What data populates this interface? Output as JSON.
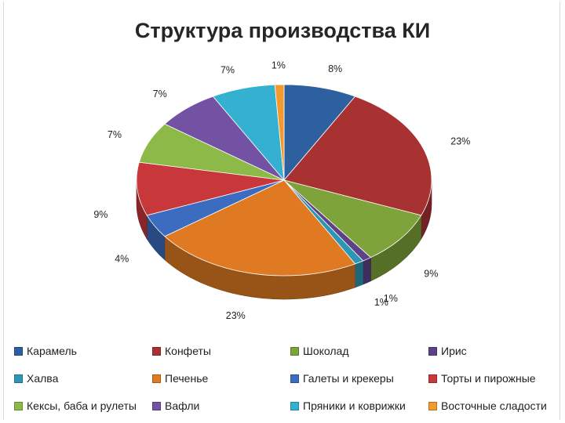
{
  "chart_data": {
    "type": "pie",
    "style": "3d-pie",
    "title": "Структура производства КИ",
    "legend_position": "bottom",
    "slices": [
      {
        "name": "Карамель",
        "value": 8,
        "label": "8%",
        "color": "#2e5f9e"
      },
      {
        "name": "Конфеты",
        "value": 23,
        "label": "23%",
        "color": "#a83232"
      },
      {
        "name": "Шоколад",
        "value": 9,
        "label": "9%",
        "color": "#7ea33a"
      },
      {
        "name": "Ирис",
        "value": 1,
        "label": "1%",
        "color": "#5d4287"
      },
      {
        "name": "Халва",
        "value": 1,
        "label": "1%",
        "color": "#2c97b4"
      },
      {
        "name": "Печенье",
        "value": 23,
        "label": "23%",
        "color": "#e07a22"
      },
      {
        "name": "Галеты и крекеры",
        "value": 4,
        "label": "4%",
        "color": "#3c6cc0"
      },
      {
        "name": "Торты и пирожные",
        "value": 9,
        "label": "9%",
        "color": "#c8383a"
      },
      {
        "name": "Кексы, баба и рулеты",
        "value": 7,
        "label": "7%",
        "color": "#8db948"
      },
      {
        "name": "Вафли",
        "value": 7,
        "label": "7%",
        "color": "#7352a3"
      },
      {
        "name": "Пряники и коврижки",
        "value": 7,
        "label": "7%",
        "color": "#34b0d0"
      },
      {
        "name": "Восточные сладости",
        "value": 1,
        "label": "1%",
        "color": "#f29a2e"
      }
    ]
  }
}
